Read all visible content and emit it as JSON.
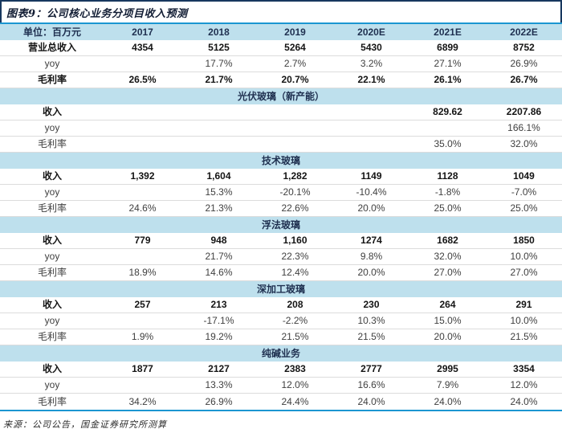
{
  "title": "图表9：公司核心业务分项目收入预测",
  "source_note": "来源：公司公告，国金证券研究所测算",
  "colors": {
    "accent_blue": "#1B96D1",
    "band_light_blue": "#BEE0ED",
    "navy_border": "#17375E",
    "separator_gray": "#DCDCDC"
  },
  "table": {
    "columns": [
      "单位：百万元",
      "2017",
      "2018",
      "2019",
      "2020E",
      "2021E",
      "2022E"
    ],
    "rows": [
      {
        "type": "data",
        "label": "营业总收入",
        "bold": true,
        "values": [
          "4354",
          "5125",
          "5264",
          "5430",
          "6899",
          "8752"
        ]
      },
      {
        "type": "data",
        "label": "yoy",
        "bold": false,
        "values": [
          "",
          "17.7%",
          "2.7%",
          "3.2%",
          "27.1%",
          "26.9%"
        ]
      },
      {
        "type": "data",
        "label": "毛利率",
        "bold": true,
        "values": [
          "26.5%",
          "21.7%",
          "20.7%",
          "22.1%",
          "26.1%",
          "26.7%"
        ]
      },
      {
        "type": "section",
        "label": "光伏玻璃（新产能）"
      },
      {
        "type": "data",
        "label": "收入",
        "bold": true,
        "values": [
          "",
          "",
          "",
          "",
          "829.62",
          "2207.86"
        ]
      },
      {
        "type": "data",
        "label": "yoy",
        "bold": false,
        "values": [
          "",
          "",
          "",
          "",
          "",
          "166.1%"
        ]
      },
      {
        "type": "data",
        "label": "毛利率",
        "bold": false,
        "values": [
          "",
          "",
          "",
          "",
          "35.0%",
          "32.0%"
        ]
      },
      {
        "type": "section",
        "label": "技术玻璃"
      },
      {
        "type": "data",
        "label": "收入",
        "bold": true,
        "values": [
          "1,392",
          "1,604",
          "1,282",
          "1149",
          "1128",
          "1049"
        ]
      },
      {
        "type": "data",
        "label": "yoy",
        "bold": false,
        "values": [
          "",
          "15.3%",
          "-20.1%",
          "-10.4%",
          "-1.8%",
          "-7.0%"
        ]
      },
      {
        "type": "data",
        "label": "毛利率",
        "bold": false,
        "values": [
          "24.6%",
          "21.3%",
          "22.6%",
          "20.0%",
          "25.0%",
          "25.0%"
        ]
      },
      {
        "type": "section",
        "label": "浮法玻璃"
      },
      {
        "type": "data",
        "label": "收入",
        "bold": true,
        "values": [
          "779",
          "948",
          "1,160",
          "1274",
          "1682",
          "1850"
        ]
      },
      {
        "type": "data",
        "label": "yoy",
        "bold": false,
        "values": [
          "",
          "21.7%",
          "22.3%",
          "9.8%",
          "32.0%",
          "10.0%"
        ]
      },
      {
        "type": "data",
        "label": "毛利率",
        "bold": false,
        "values": [
          "18.9%",
          "14.6%",
          "12.4%",
          "20.0%",
          "27.0%",
          "27.0%"
        ]
      },
      {
        "type": "section",
        "label": "深加工玻璃"
      },
      {
        "type": "data",
        "label": "收入",
        "bold": true,
        "values": [
          "257",
          "213",
          "208",
          "230",
          "264",
          "291"
        ]
      },
      {
        "type": "data",
        "label": "yoy",
        "bold": false,
        "values": [
          "",
          "-17.1%",
          "-2.2%",
          "10.3%",
          "15.0%",
          "10.0%"
        ]
      },
      {
        "type": "data",
        "label": "毛利率",
        "bold": false,
        "values": [
          "1.9%",
          "19.2%",
          "21.5%",
          "21.5%",
          "20.0%",
          "21.5%"
        ]
      },
      {
        "type": "section",
        "label": "纯碱业务"
      },
      {
        "type": "data",
        "label": "收入",
        "bold": true,
        "values": [
          "1877",
          "2127",
          "2383",
          "2777",
          "2995",
          "3354"
        ]
      },
      {
        "type": "data",
        "label": "yoy",
        "bold": false,
        "values": [
          "",
          "13.3%",
          "12.0%",
          "16.6%",
          "7.9%",
          "12.0%"
        ]
      },
      {
        "type": "data",
        "label": "毛利率",
        "bold": false,
        "values": [
          "34.2%",
          "26.9%",
          "24.4%",
          "24.0%",
          "24.0%",
          "24.0%"
        ]
      }
    ]
  }
}
